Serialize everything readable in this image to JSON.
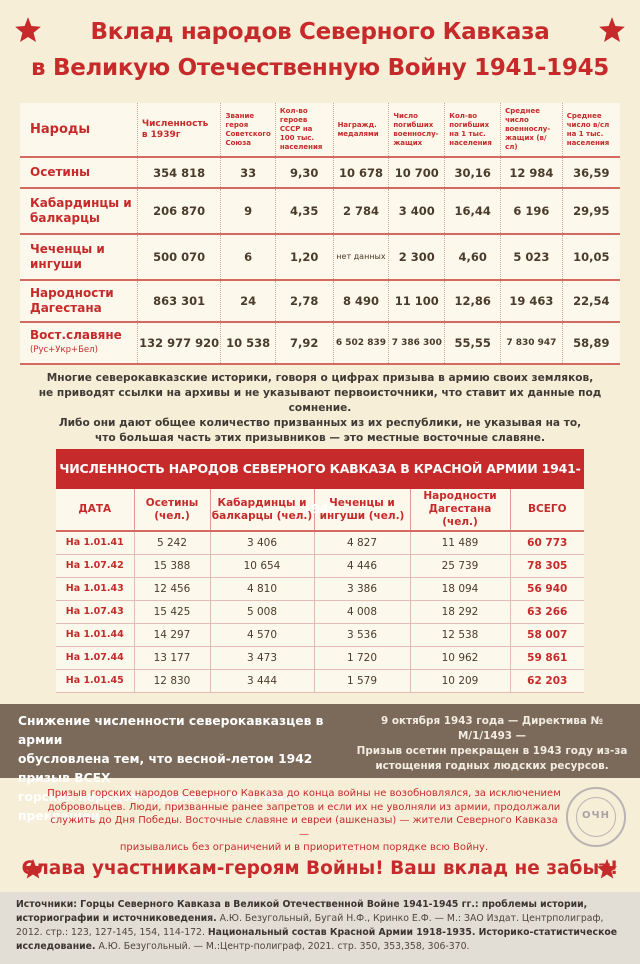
{
  "header": {
    "line1": "Вклад народов Северного Кавказа",
    "line2": "в Великую Отечественную Войну 1941-1945"
  },
  "table1": {
    "headers": {
      "peoples": "Народы",
      "pop": "Численность в 1939г",
      "heroes": "Звание героя Советского Союза",
      "heroes100": "Кол-во героев СССР на 100 тыс. населения",
      "medals": "Награжд. медалями",
      "dead": "Число погибших военнослу-жащих",
      "dead1": "Кол-во погибших на 1 тыс. населения",
      "avg": "Среднее число военнослу-жащих (в/сл)",
      "avg1": "Среднее число в/сл на 1 тыс. населения"
    },
    "rows": [
      {
        "name": "Осетины",
        "sub": "",
        "pop": "354 818",
        "heroes": "33",
        "heroes100": "9,30",
        "medals": "10 678",
        "dead": "10 700",
        "dead1": "30,16",
        "avg": "12 984",
        "avg1": "36,59"
      },
      {
        "name": "Кабардинцы и балкарцы",
        "sub": "",
        "pop": "206 870",
        "heroes": "9",
        "heroes100": "4,35",
        "medals": "2 784",
        "dead": "3 400",
        "dead1": "16,44",
        "avg": "6 196",
        "avg1": "29,95"
      },
      {
        "name": "Чеченцы и ингуши",
        "sub": "",
        "pop": "500 070",
        "heroes": "6",
        "heroes100": "1,20",
        "medals": "нет данных",
        "dead": "2 300",
        "dead1": "4,60",
        "avg": "5 023",
        "avg1": "10,05"
      },
      {
        "name": "Народности Дагестана",
        "sub": "",
        "pop": "863 301",
        "heroes": "24",
        "heroes100": "2,78",
        "medals": "8 490",
        "dead": "11 100",
        "dead1": "12,86",
        "avg": "19 463",
        "avg1": "22,54"
      },
      {
        "name": "Вост.славяне",
        "sub": "(Рус+Укр+Бел)",
        "pop": "132 977 920",
        "heroes": "10 538",
        "heroes100": "7,92",
        "medals": "6 502 839",
        "dead": "7 386 300",
        "dead1": "55,55",
        "avg": "7 830 947",
        "avg1": "58,89"
      }
    ]
  },
  "paragraph1": {
    "l1": "Многие северокавказские историки, говоря о цифрах призыва в армию своих земляков,",
    "l2": "не приводят ссылки на архивы и не указывают первоисточники, что ставит их данные под сомнение.",
    "l3": "Либо они дают общее количество призванных из их республики, не указывая на то,",
    "l4": "что большая часть этих призывников — это местные восточные славяне."
  },
  "table2": {
    "title": "ЧИСЛЕННОСТЬ НАРОДОВ СЕВЕРНОГО КАВКАЗА В КРАСНОЙ АРМИИ 1941-1945",
    "headers": {
      "date": "ДАТА",
      "oset": "Осетины (чел.)",
      "kab": "Кабардинцы и балкарцы (чел.)",
      "chech": "Чеченцы и ингуши (чел.)",
      "dag": "Народности Дагестана (чел.)",
      "total": "ВСЕГО"
    },
    "rows": [
      {
        "date": "На 1.01.41",
        "oset": "5 242",
        "kab": "3 406",
        "chech": "4 827",
        "dag": "11 489",
        "total": "60 773"
      },
      {
        "date": "На 1.07.42",
        "oset": "15 388",
        "kab": "10 654",
        "chech": "4 446",
        "dag": "25 739",
        "total": "78 305"
      },
      {
        "date": "На 1.01.43",
        "oset": "12 456",
        "kab": "4 810",
        "chech": "3 386",
        "dag": "18 094",
        "total": "56 940"
      },
      {
        "date": "На 1.07.43",
        "oset": "15 425",
        "kab": "5 008",
        "chech": "4 008",
        "dag": "18 292",
        "total": "63 266"
      },
      {
        "date": "На 1.01.44",
        "oset": "14 297",
        "kab": "4 570",
        "chech": "3 536",
        "dag": "12 538",
        "total": "58 007"
      },
      {
        "date": "На 1.07.44",
        "oset": "13 177",
        "kab": "3 473",
        "chech": "1 720",
        "dag": "10 962",
        "total": "59 861"
      },
      {
        "date": "На 1.01.45",
        "oset": "12 830",
        "kab": "3 444",
        "chech": "1 579",
        "dag": "10 209",
        "total": "62 203"
      }
    ]
  },
  "band": {
    "left1": "Снижение численности северокавказцев в армии",
    "left2": "обусловлена тем, что весной-летом 1942 призыв ВСЕХ",
    "left3": "горских народов, (кроме осетин), был прекращен.",
    "right1": "9 октября 1943 года — Директива № М/1/1493 —",
    "right2": "Призыв осетин прекращен в 1943 году из-за",
    "right3": "истощения годных людских ресурсов."
  },
  "paragraph2": {
    "l1": "Призыв горских народов Северного Кавказа до конца войны не возобновлялся, за исключением",
    "l2": "добровольцев. Люди, призванные ранее запретов и если их не уволняли из армии, продолжали",
    "l3": "служить до Дня Победы. Восточные славяне и евреи (ашкеназы) — жители Северного Кавказа —",
    "l4": "призывались без ограничений и в приоритетном порядке всю Войну."
  },
  "seal": {
    "text": "ОЧН"
  },
  "slogan": "Слава участникам-героям Войны! Ваш вклад не забыт!",
  "footer": {
    "label1": "Источники:",
    "src1": " Горцы Северного Кавказа в Великой Отечественной Войне 1941-1945 гг.: проблемы истории, историографии и источниковедения.",
    "src1b": " А.Ю. Безугольный, Бугай Н.Ф., Кринко Е.Ф. — М.: ЗАО Издат. Центрполиграф, 2012. стр.: 123, 127-145, 154, 114-172.",
    "src2": "Национальный состав Красной Армии 1918-1935. Историко-статистическое исследование.",
    "src2b": " А.Ю. Безугольный. — М.:Центр-полиграф, 2021. стр. 350, 353,358, 306-370."
  },
  "colors": {
    "accent": "#c62a2a",
    "band": "#7b6a59",
    "background": "#f7eed8"
  }
}
